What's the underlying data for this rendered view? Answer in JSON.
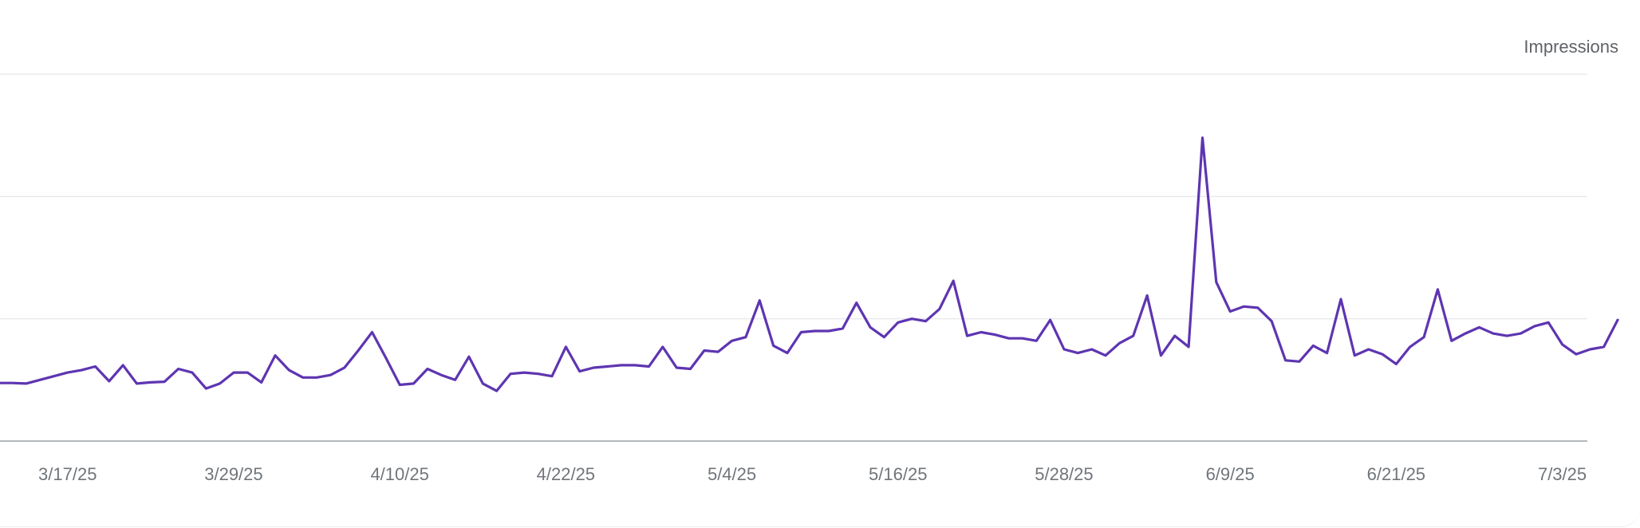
{
  "chart_data": {
    "type": "line",
    "series_label": "Impressions",
    "colors": {
      "line": "#5e35b1",
      "grid": "#e8eaed",
      "axis": "#9aa0a6",
      "text": "#70757a"
    },
    "grid": true,
    "x_start_date": "3/12/25",
    "x_tick_labels": [
      "3/17/25",
      "3/29/25",
      "4/10/25",
      "4/22/25",
      "5/4/25",
      "5/16/25",
      "5/28/25",
      "6/9/25",
      "6/21/25",
      "7/3/25"
    ],
    "x_tick_days": [
      5,
      17,
      29,
      41,
      53,
      65,
      77,
      89,
      101,
      113
    ],
    "y_max": 3,
    "series": [
      {
        "values": [
          0.475,
          0.475,
          0.47,
          0.5,
          0.53,
          0.56,
          0.58,
          0.61,
          0.49,
          0.62,
          0.47,
          0.48,
          0.485,
          0.59,
          0.56,
          0.43,
          0.47,
          0.56,
          0.56,
          0.48,
          0.7,
          0.58,
          0.52,
          0.52,
          0.54,
          0.6,
          0.74,
          0.89,
          0.68,
          0.46,
          0.47,
          0.59,
          0.54,
          0.5,
          0.69,
          0.47,
          0.41,
          0.55,
          0.56,
          0.55,
          0.53,
          0.77,
          0.57,
          0.6,
          0.61,
          0.62,
          0.62,
          0.61,
          0.77,
          0.6,
          0.59,
          0.74,
          0.73,
          0.82,
          0.85,
          1.15,
          0.78,
          0.72,
          0.89,
          0.9,
          0.9,
          0.92,
          1.13,
          0.93,
          0.85,
          0.97,
          1.0,
          0.98,
          1.08,
          1.31,
          0.86,
          0.89,
          0.87,
          0.84,
          0.84,
          0.82,
          0.99,
          0.75,
          0.72,
          0.75,
          0.7,
          0.8,
          0.86,
          1.19,
          0.7,
          0.86,
          0.77,
          2.48,
          1.3,
          1.06,
          1.1,
          1.09,
          0.98,
          0.66,
          0.65,
          0.78,
          0.72,
          1.16,
          0.7,
          0.75,
          0.71,
          0.63,
          0.77,
          0.85,
          1.24,
          0.82,
          0.88,
          0.93,
          0.88,
          0.86,
          0.88,
          0.94,
          0.97,
          0.79,
          0.71,
          0.75,
          0.77,
          0.99
        ]
      }
    ]
  }
}
